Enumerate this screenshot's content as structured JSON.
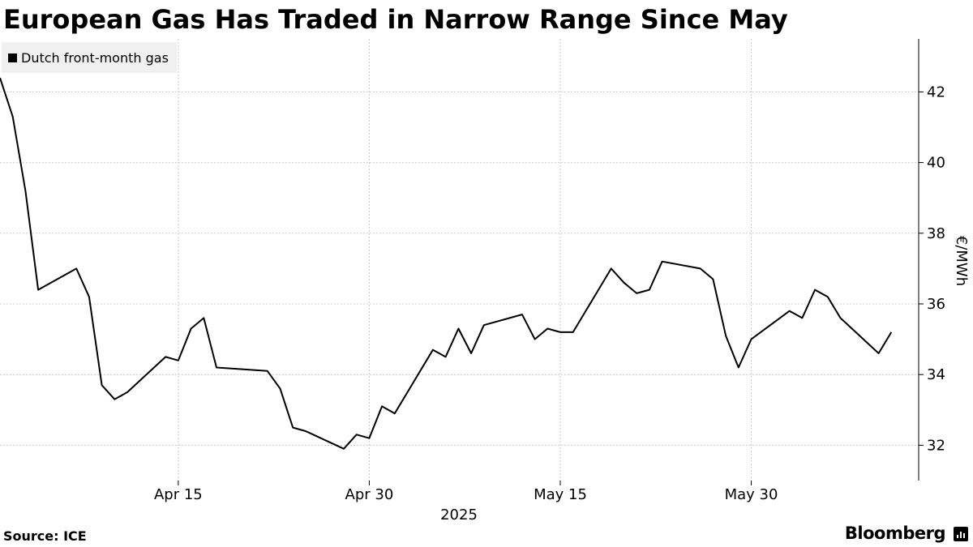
{
  "header": {
    "title": "European Gas Has Traded in Narrow Range Since May"
  },
  "legend": {
    "label": "Dutch front-month gas"
  },
  "footer": {
    "source": "Source: ICE",
    "brand": "Bloomberg",
    "brand_icon": "bloomberg-terminal-icon"
  },
  "chart_data": {
    "type": "line",
    "xlabel": "2025",
    "ylabel": "€/MWh",
    "ylim": [
      31,
      43.5
    ],
    "xlim": [
      "2025-04-01",
      "2025-06-11"
    ],
    "yticks": [
      32,
      34,
      36,
      38,
      40,
      42
    ],
    "xticks": [
      {
        "date": "2025-04-15",
        "label": "Apr 15"
      },
      {
        "date": "2025-04-30",
        "label": "Apr 30"
      },
      {
        "date": "2025-05-15",
        "label": "May 15"
      },
      {
        "date": "2025-05-30",
        "label": "May 30"
      }
    ],
    "grid": true,
    "legend_position": "top-left",
    "colors": {
      "line": "#000000",
      "grid": "#cccccc"
    },
    "series": [
      {
        "name": "Dutch front-month gas",
        "x": [
          "2025-04-01",
          "2025-04-02",
          "2025-04-03",
          "2025-04-04",
          "2025-04-07",
          "2025-04-08",
          "2025-04-09",
          "2025-04-10",
          "2025-04-11",
          "2025-04-14",
          "2025-04-15",
          "2025-04-16",
          "2025-04-17",
          "2025-04-18",
          "2025-04-22",
          "2025-04-23",
          "2025-04-24",
          "2025-04-25",
          "2025-04-28",
          "2025-04-29",
          "2025-04-30",
          "2025-05-01",
          "2025-05-02",
          "2025-05-05",
          "2025-05-06",
          "2025-05-07",
          "2025-05-08",
          "2025-05-09",
          "2025-05-12",
          "2025-05-13",
          "2025-05-14",
          "2025-05-15",
          "2025-05-16",
          "2025-05-19",
          "2025-05-20",
          "2025-05-21",
          "2025-05-22",
          "2025-05-23",
          "2025-05-26",
          "2025-05-27",
          "2025-05-28",
          "2025-05-29",
          "2025-05-30",
          "2025-06-02",
          "2025-06-03",
          "2025-06-04",
          "2025-06-05",
          "2025-06-06",
          "2025-06-09",
          "2025-06-10"
        ],
        "y": [
          42.4,
          41.3,
          39.2,
          36.4,
          37.0,
          36.2,
          33.7,
          33.3,
          33.5,
          34.5,
          34.4,
          35.3,
          35.6,
          34.2,
          34.1,
          33.6,
          32.5,
          32.4,
          31.9,
          32.3,
          32.2,
          33.1,
          32.9,
          34.7,
          34.5,
          35.3,
          34.6,
          35.4,
          35.7,
          35.0,
          35.3,
          35.2,
          35.2,
          37.0,
          36.6,
          36.3,
          36.4,
          37.2,
          37.0,
          36.7,
          35.1,
          34.2,
          35.0,
          35.8,
          35.6,
          36.4,
          36.2,
          35.6,
          34.6,
          35.2
        ]
      }
    ]
  }
}
